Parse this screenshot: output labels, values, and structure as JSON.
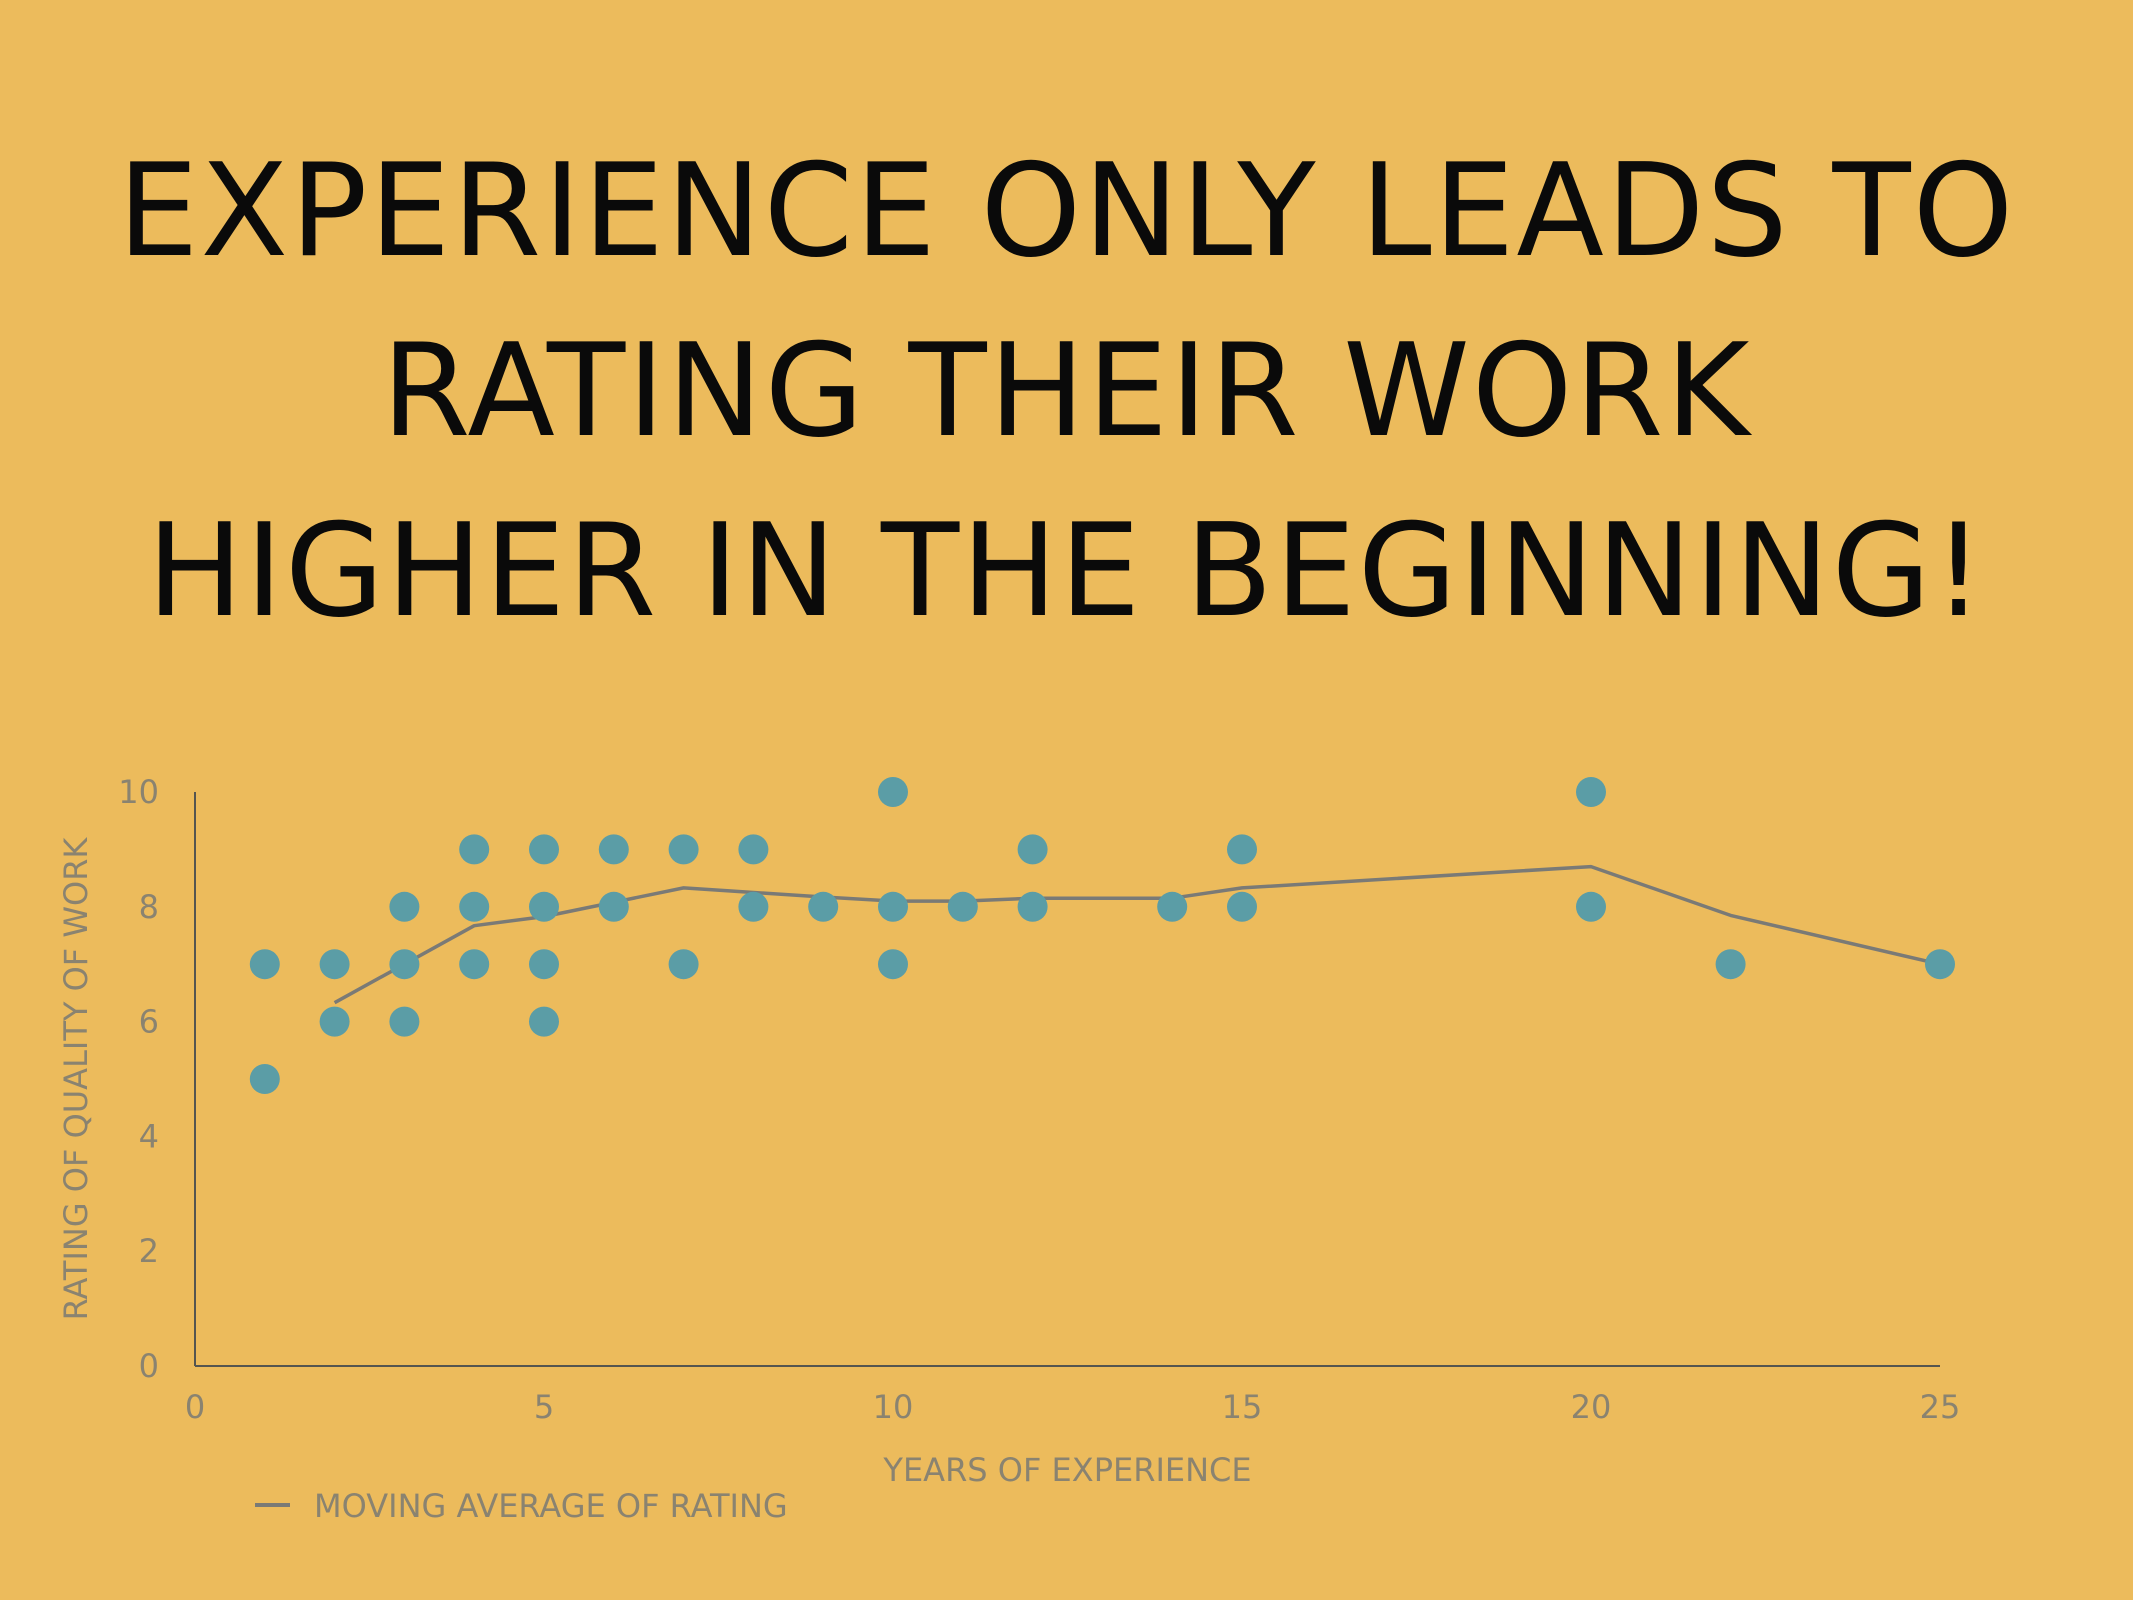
{
  "slide": {
    "title_lines": [
      "EXPERIENCE ONLY LEADS TO",
      "RATING THEIR WORK",
      "HIGHER IN THE BEGINNING!"
    ]
  },
  "colors": {
    "background": "#ECBB5C",
    "title_text": "#0a0a0a",
    "point_fill": "#5B9DA6",
    "trend_line": "#7a7a76",
    "axis": "#555550",
    "label_text": "#8a8370"
  },
  "chart_data": {
    "type": "scatter",
    "xlabel": "YEARS OF EXPERIENCE",
    "ylabel": "RATING OF QUALITY OF WORK",
    "xlim": [
      0,
      25
    ],
    "ylim": [
      0,
      10
    ],
    "xticks": [
      "0",
      "5",
      "10",
      "15",
      "20",
      "25"
    ],
    "yticks": [
      "0",
      "2",
      "4",
      "6",
      "8",
      "10"
    ],
    "grid": false,
    "legend_position": "bottom-left",
    "points": [
      {
        "x": 1,
        "y": 7
      },
      {
        "x": 1,
        "y": 5
      },
      {
        "x": 2,
        "y": 7
      },
      {
        "x": 2,
        "y": 6
      },
      {
        "x": 3,
        "y": 8
      },
      {
        "x": 3,
        "y": 7
      },
      {
        "x": 3,
        "y": 6
      },
      {
        "x": 4,
        "y": 9
      },
      {
        "x": 4,
        "y": 8
      },
      {
        "x": 4,
        "y": 7
      },
      {
        "x": 5,
        "y": 9
      },
      {
        "x": 5,
        "y": 8
      },
      {
        "x": 5,
        "y": 7
      },
      {
        "x": 5,
        "y": 6
      },
      {
        "x": 6,
        "y": 9
      },
      {
        "x": 6,
        "y": 8
      },
      {
        "x": 7,
        "y": 9
      },
      {
        "x": 7,
        "y": 7
      },
      {
        "x": 8,
        "y": 9
      },
      {
        "x": 8,
        "y": 8
      },
      {
        "x": 9,
        "y": 8
      },
      {
        "x": 10,
        "y": 10
      },
      {
        "x": 10,
        "y": 8
      },
      {
        "x": 10,
        "y": 7
      },
      {
        "x": 11,
        "y": 8
      },
      {
        "x": 12,
        "y": 9
      },
      {
        "x": 12,
        "y": 8
      },
      {
        "x": 14,
        "y": 8
      },
      {
        "x": 15,
        "y": 9
      },
      {
        "x": 15,
        "y": 8
      },
      {
        "x": 20,
        "y": 10
      },
      {
        "x": 20,
        "y": 8
      },
      {
        "x": 22,
        "y": 7
      },
      {
        "x": 25,
        "y": 7
      }
    ],
    "trendline": {
      "name": "MOVING AVERAGE OF RATING",
      "x": [
        2,
        4,
        5,
        7,
        9,
        10,
        11,
        12,
        14,
        15,
        20,
        22,
        25
      ],
      "y": [
        6.33,
        7.67,
        7.83,
        8.33,
        8.17,
        8.1,
        8.1,
        8.15,
        8.15,
        8.33,
        8.7,
        7.85,
        7.0
      ]
    }
  }
}
